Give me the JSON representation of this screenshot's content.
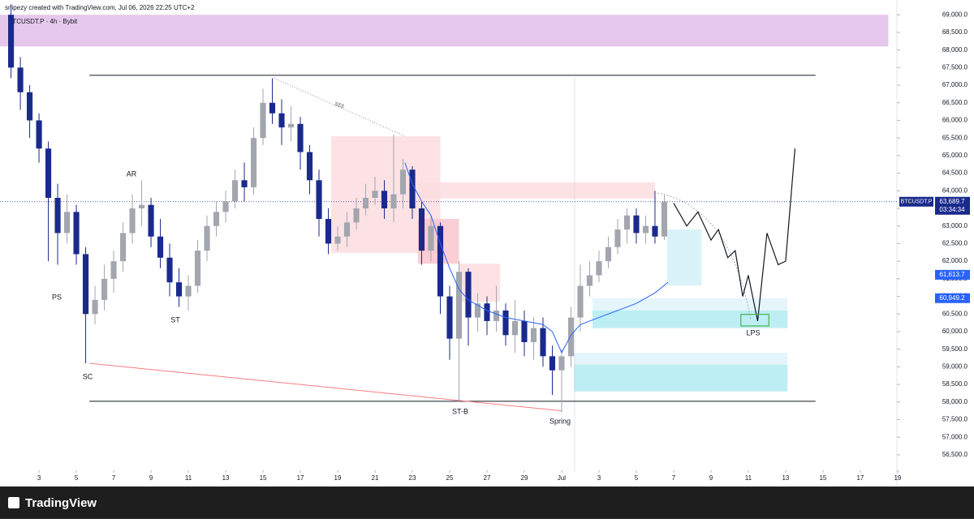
{
  "header": {
    "credit": "snipezy created with TradingView.com, Jul 06, 2026 22:25 UTC+2",
    "instrument": "BTCUSDT.P · 4h · Bybit"
  },
  "footer": {
    "brand": "TradingView"
  },
  "chart_data": {
    "type": "candlestick",
    "up_color": "#a3a6ae",
    "down_color": "#1a2a8c",
    "x": [
      1.5,
      2,
      2.5,
      3,
      3.5,
      4,
      4.5,
      5,
      5.5,
      6,
      6.5,
      7,
      7.5,
      8,
      8.5,
      9,
      9.5,
      10,
      10.5,
      11,
      11.5,
      12,
      12.5,
      13,
      13.5,
      14,
      14.5,
      15,
      15.5,
      16,
      16.5,
      17,
      17.5,
      18,
      18.5,
      19,
      19.5,
      20,
      20.5,
      21,
      21.5,
      22,
      22.5,
      23,
      23.5,
      24,
      24.5,
      25,
      25.5,
      26,
      26.5,
      27,
      27.5,
      28,
      28.5,
      29,
      29.5,
      30,
      30.5,
      31,
      31.5,
      32,
      32.5,
      33,
      33.5,
      34,
      34.5,
      35,
      35.5,
      36,
      36.5
    ],
    "open": [
      69000,
      67500,
      66800,
      66000,
      65200,
      63800,
      62800,
      63400,
      62200,
      60500,
      60900,
      61500,
      62000,
      62800,
      63500,
      63600,
      62700,
      62100,
      61400,
      61000,
      61300,
      62300,
      63000,
      63400,
      63700,
      64300,
      64100,
      65500,
      66500,
      66200,
      65800,
      65900,
      65100,
      64300,
      63200,
      62500,
      62700,
      63100,
      63500,
      63800,
      64000,
      63500,
      63900,
      64600,
      63500,
      62300,
      63000,
      61000,
      59800,
      61700,
      60400,
      60800,
      60300,
      60600,
      59900,
      60300,
      59700,
      60100,
      59300,
      58900,
      59300,
      60400,
      61300,
      61600,
      62000,
      62400,
      62900,
      63300,
      62800,
      63000,
      62700
    ],
    "high": [
      69300,
      67800,
      67000,
      66200,
      65400,
      64200,
      63900,
      63600,
      62400,
      61300,
      61900,
      62300,
      63100,
      63900,
      64300,
      63800,
      63200,
      62500,
      61800,
      61600,
      62600,
      63300,
      63700,
      64000,
      64600,
      64800,
      65800,
      66900,
      67200,
      66600,
      66400,
      66100,
      65300,
      64600,
      63500,
      63000,
      63400,
      63800,
      64200,
      64400,
      64300,
      65600,
      64900,
      64700,
      63700,
      63300,
      63100,
      61300,
      62000,
      61800,
      61100,
      61000,
      61300,
      60800,
      60900,
      60600,
      60400,
      60400,
      59600,
      59500,
      60700,
      61900,
      62000,
      62300,
      62700,
      63200,
      63500,
      63500,
      63300,
      64000,
      63900
    ],
    "low": [
      67200,
      66300,
      65500,
      64800,
      62000,
      61900,
      62500,
      61900,
      59100,
      60200,
      60600,
      61100,
      61700,
      62500,
      63000,
      62400,
      61800,
      61000,
      60700,
      60600,
      61100,
      62000,
      62700,
      63100,
      63500,
      63700,
      63900,
      65300,
      65900,
      65300,
      65400,
      64600,
      63900,
      62700,
      62200,
      62300,
      62400,
      62900,
      63300,
      63600,
      63200,
      63100,
      63500,
      63200,
      61900,
      62000,
      60500,
      59200,
      58000,
      59600,
      60000,
      59900,
      60000,
      59600,
      59400,
      59300,
      59200,
      59000,
      58200,
      57700,
      59000,
      60000,
      61000,
      61400,
      61800,
      62200,
      62500,
      62500,
      62500,
      62500,
      62600
    ],
    "close": [
      67500,
      66800,
      66000,
      65200,
      63800,
      62800,
      63400,
      62200,
      60500,
      60900,
      61500,
      62000,
      62800,
      63500,
      63600,
      62700,
      62100,
      61400,
      61000,
      61300,
      62300,
      63000,
      63400,
      63700,
      64300,
      64100,
      65500,
      66500,
      66200,
      65800,
      65900,
      65100,
      64300,
      63200,
      62500,
      62700,
      63100,
      63500,
      63800,
      64000,
      63500,
      63900,
      64600,
      63500,
      62300,
      63000,
      61000,
      59800,
      61700,
      60400,
      60800,
      60300,
      60600,
      59900,
      60300,
      59700,
      60100,
      59300,
      58900,
      59300,
      60400,
      61300,
      61600,
      62000,
      62400,
      62900,
      63300,
      62800,
      63000,
      62700,
      63689.7
    ],
    "overlay": {
      "color": "#2962ff",
      "x": [
        22.6,
        23,
        23.5,
        24,
        24.5,
        25,
        25.5,
        26,
        27,
        28,
        29,
        30,
        30.5,
        31,
        31.5,
        32,
        33,
        34,
        35,
        36,
        36.7
      ],
      "values": [
        64800,
        64200,
        63700,
        63300,
        62500,
        61800,
        61200,
        60900,
        60600,
        60400,
        60300,
        60200,
        60000,
        59400,
        59900,
        60200,
        60400,
        60600,
        60800,
        61100,
        61400
      ]
    },
    "projection": {
      "color": "#131722",
      "x": [
        37,
        37.7,
        38.3,
        39,
        39.4,
        39.9,
        40.3,
        40.7,
        41,
        41.5,
        42,
        42.6,
        43,
        43.5
      ],
      "values": [
        63650,
        63000,
        63400,
        62600,
        62900,
        62100,
        62300,
        61000,
        61600,
        60300,
        62800,
        61900,
        62000,
        65200
      ]
    },
    "zones": [
      {
        "x": [
          0.91,
          48.5
        ],
        "y": [
          68100,
          69000
        ],
        "color": "#e1bee7"
      },
      {
        "x": [
          18.65,
          24.5
        ],
        "y": [
          62235,
          65550
        ],
        "color": "#fcdde0"
      },
      {
        "x": [
          23.3,
          36
        ],
        "y": [
          63780,
          64240
        ],
        "color": "#fcdde0"
      },
      {
        "x": [
          23.3,
          25.5
        ],
        "y": [
          61930,
          63200
        ],
        "color": "#f9c6cc"
      },
      {
        "x": [
          25.5,
          27.7
        ],
        "y": [
          60850,
          61930
        ],
        "color": "#fcdde0"
      },
      {
        "x": [
          36.65,
          38.5
        ],
        "y": [
          61310,
          62900
        ],
        "color": "#d4f1f8"
      },
      {
        "x": [
          32.65,
          43.1
        ],
        "y": [
          60600,
          60950
        ],
        "color": "#dff5fa"
      },
      {
        "x": [
          32.65,
          43.1
        ],
        "y": [
          60100,
          60600
        ],
        "color": "#b2ebf2"
      },
      {
        "x": [
          31.65,
          43.1
        ],
        "y": [
          59060,
          59400
        ],
        "color": "#dff5fa"
      },
      {
        "x": [
          31.65,
          43.1
        ],
        "y": [
          58300,
          59060
        ],
        "color": "#b2ebf2"
      }
    ],
    "levels": [
      {
        "x": [
          5.7,
          44.6
        ],
        "y": [
          67280,
          67280
        ],
        "color": "#131722"
      },
      {
        "x": [
          5.7,
          44.6
        ],
        "y": [
          58020,
          58020
        ],
        "color": "#131722"
      },
      {
        "x": [
          5.7,
          31
        ],
        "y": [
          59100,
          57750
        ],
        "color": "#f77c80"
      }
    ],
    "target": {
      "x": [
        40.6,
        42.1
      ],
      "y": [
        60160,
        60490
      ],
      "color": "#4caf50"
    },
    "annotations": [
      "PS",
      "AR",
      "ST",
      "SC",
      "ST-B",
      "Spring",
      "LPS",
      "$$$"
    ],
    "last_price": {
      "value": 63689.7,
      "label": "63,689.7"
    },
    "symbol": "BTCUSDT.P",
    "countdown": "03:34:34",
    "price_badges": [
      {
        "value": 61613.7,
        "label": "61,613.7"
      },
      {
        "value": 60949.2,
        "label": "60,949.2"
      }
    ],
    "xlim": [
      0.91,
      48.96
    ],
    "ylim": [
      56060,
      69420
    ],
    "xticks": [
      3,
      5,
      7,
      9,
      11,
      13,
      15,
      17,
      19,
      21,
      23,
      25,
      27,
      29,
      {
        "value": 31,
        "label": "Jul"
      },
      {
        "value": 33,
        "label": "3"
      },
      {
        "value": 35,
        "label": "5"
      },
      {
        "value": 37,
        "label": "7"
      },
      {
        "value": 39,
        "label": "9"
      },
      {
        "value": 41,
        "label": "11"
      },
      {
        "value": 43,
        "label": "13"
      },
      {
        "value": 45,
        "label": "15"
      },
      {
        "value": 47,
        "label": "17"
      },
      {
        "value": 49,
        "label": "19"
      }
    ],
    "yticks": [
      {
        "value": 56500,
        "label": "56,500.0"
      },
      {
        "value": 57000,
        "label": "57,000.0"
      },
      {
        "value": 57500,
        "label": "57,500.0"
      },
      {
        "value": 58000,
        "label": "58,000.0"
      },
      {
        "value": 58500,
        "label": "58,500.0"
      },
      {
        "value": 59000,
        "label": "59,000.0"
      },
      {
        "value": 59500,
        "label": "59,500.0"
      },
      {
        "value": 60000,
        "label": "60,000.0"
      },
      {
        "value": 60500,
        "label": "60,500.0"
      },
      {
        "value": 61000,
        "label": "61,000.0"
      },
      {
        "value": 61500,
        "label": "61,500.0"
      },
      {
        "value": 62000,
        "label": "62,000.0"
      },
      {
        "value": 62500,
        "label": "62,500.0"
      },
      {
        "value": 63000,
        "label": "63,000.0"
      },
      {
        "value": 63500,
        "label": "63,500.0"
      },
      {
        "value": 64000,
        "label": "64,000.0"
      },
      {
        "value": 64500,
        "label": "64,500.0"
      },
      {
        "value": 65000,
        "label": "65,000.0"
      },
      {
        "value": 65500,
        "label": "65,500.0"
      },
      {
        "value": 66000,
        "label": "66,000.0"
      },
      {
        "value": 66500,
        "label": "66,500.0"
      },
      {
        "value": 67000,
        "label": "67,000.0"
      },
      {
        "value": 67500,
        "label": "67,500.0"
      },
      {
        "value": 68000,
        "label": "68,000.0"
      },
      {
        "value": 68500,
        "label": "68,500.0"
      },
      {
        "value": 69000,
        "label": "69,000.0"
      }
    ]
  }
}
